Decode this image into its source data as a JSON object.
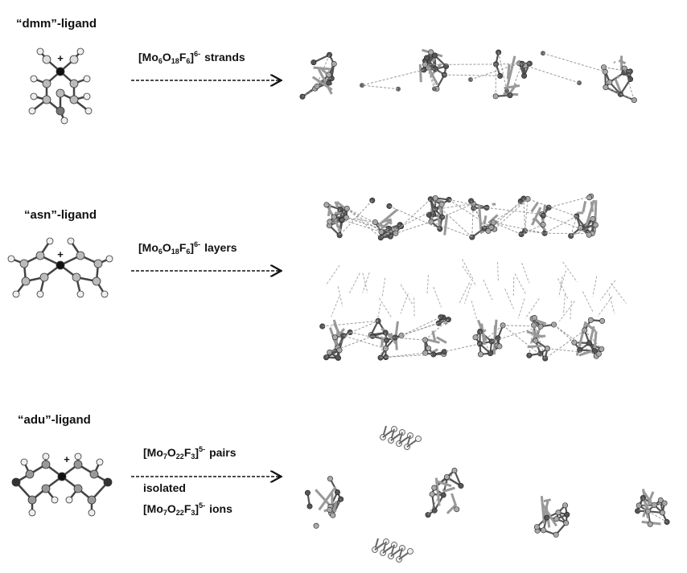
{
  "sections": [
    {
      "ligand": "“dmm”-ligand",
      "plus": "+",
      "lines": [
        {
          "formula": [
            "[Mo",
            "6",
            "O",
            "18",
            "F",
            "6",
            "]",
            "6-"
          ],
          "text": "strands"
        }
      ]
    },
    {
      "ligand": "“asn”-ligand",
      "plus": "+",
      "lines": [
        {
          "formula": [
            "[Mo",
            "6",
            "O",
            "18",
            "F",
            "6",
            "]",
            "6-"
          ],
          "text": "layers"
        }
      ]
    },
    {
      "ligand": "“adu”-ligand",
      "plus": "+",
      "lines": [
        {
          "formula": [
            "[Mo",
            "7",
            "O",
            "22",
            "F",
            "3",
            "]",
            "5-"
          ],
          "text": "pairs"
        },
        {
          "text": "isolated"
        },
        {
          "formula": [
            "[Mo",
            "7",
            "O",
            "22",
            "F",
            "3",
            "]",
            "5-"
          ],
          "text": "ions"
        }
      ]
    }
  ]
}
